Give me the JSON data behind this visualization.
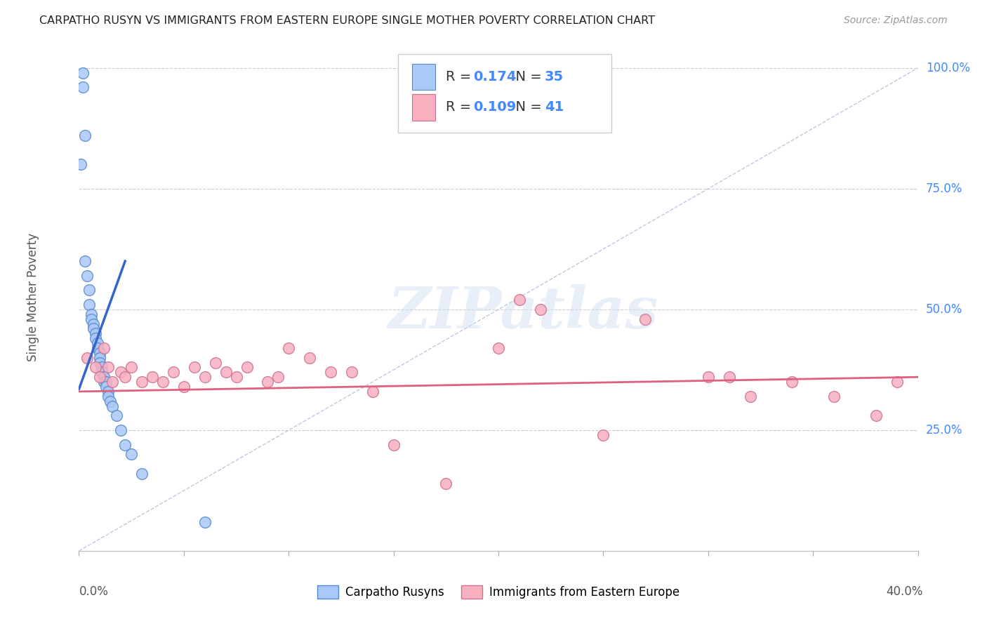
{
  "title": "CARPATHO RUSYN VS IMMIGRANTS FROM EASTERN EUROPE SINGLE MOTHER POVERTY CORRELATION CHART",
  "source": "Source: ZipAtlas.com",
  "ylabel": "Single Mother Poverty",
  "ytick_labels": [
    "100.0%",
    "75.0%",
    "50.0%",
    "25.0%"
  ],
  "ytick_values": [
    1.0,
    0.75,
    0.5,
    0.25
  ],
  "xlim": [
    0.0,
    0.4
  ],
  "ylim": [
    0.0,
    1.05
  ],
  "blue_R": "0.174",
  "blue_N": "35",
  "pink_R": "0.109",
  "pink_N": "41",
  "legend_label_blue": "Carpatho Rusyns",
  "legend_label_pink": "Immigrants from Eastern Europe",
  "watermark": "ZIPatlas",
  "blue_color": "#aac8f8",
  "blue_line_color": "#3366cc",
  "blue_border_color": "#5588cc",
  "pink_color": "#f8b0c0",
  "pink_line_color": "#e06080",
  "pink_border_color": "#cc7090",
  "grid_color": "#cccccc",
  "diag_color": "#aabbdd",
  "blue_scatter_x": [
    0.001,
    0.002,
    0.002,
    0.003,
    0.003,
    0.004,
    0.005,
    0.005,
    0.006,
    0.006,
    0.007,
    0.007,
    0.008,
    0.008,
    0.009,
    0.009,
    0.01,
    0.01,
    0.01,
    0.011,
    0.011,
    0.012,
    0.012,
    0.013,
    0.013,
    0.014,
    0.014,
    0.015,
    0.016,
    0.018,
    0.02,
    0.022,
    0.025,
    0.03,
    0.06
  ],
  "blue_scatter_y": [
    0.8,
    0.99,
    0.96,
    0.86,
    0.6,
    0.57,
    0.54,
    0.51,
    0.49,
    0.48,
    0.47,
    0.46,
    0.45,
    0.44,
    0.43,
    0.42,
    0.41,
    0.4,
    0.39,
    0.38,
    0.37,
    0.36,
    0.35,
    0.35,
    0.34,
    0.33,
    0.32,
    0.31,
    0.3,
    0.28,
    0.25,
    0.22,
    0.2,
    0.16,
    0.06
  ],
  "pink_scatter_x": [
    0.004,
    0.008,
    0.01,
    0.012,
    0.014,
    0.016,
    0.02,
    0.022,
    0.025,
    0.03,
    0.035,
    0.04,
    0.045,
    0.05,
    0.055,
    0.06,
    0.065,
    0.07,
    0.075,
    0.08,
    0.09,
    0.095,
    0.1,
    0.11,
    0.12,
    0.13,
    0.14,
    0.15,
    0.175,
    0.2,
    0.21,
    0.22,
    0.25,
    0.27,
    0.3,
    0.31,
    0.32,
    0.34,
    0.36,
    0.38,
    0.39
  ],
  "pink_scatter_y": [
    0.4,
    0.38,
    0.36,
    0.42,
    0.38,
    0.35,
    0.37,
    0.36,
    0.38,
    0.35,
    0.36,
    0.35,
    0.37,
    0.34,
    0.38,
    0.36,
    0.39,
    0.37,
    0.36,
    0.38,
    0.35,
    0.36,
    0.42,
    0.4,
    0.37,
    0.37,
    0.33,
    0.22,
    0.14,
    0.42,
    0.52,
    0.5,
    0.24,
    0.48,
    0.36,
    0.36,
    0.32,
    0.35,
    0.32,
    0.28,
    0.35
  ],
  "blue_line_x": [
    0.0,
    0.022
  ],
  "blue_line_y": [
    0.335,
    0.6
  ],
  "pink_line_x": [
    0.0,
    0.4
  ],
  "pink_line_y": [
    0.33,
    0.36
  ],
  "diag_line_x": [
    0.0,
    0.4
  ],
  "diag_line_y": [
    0.0,
    1.0
  ]
}
